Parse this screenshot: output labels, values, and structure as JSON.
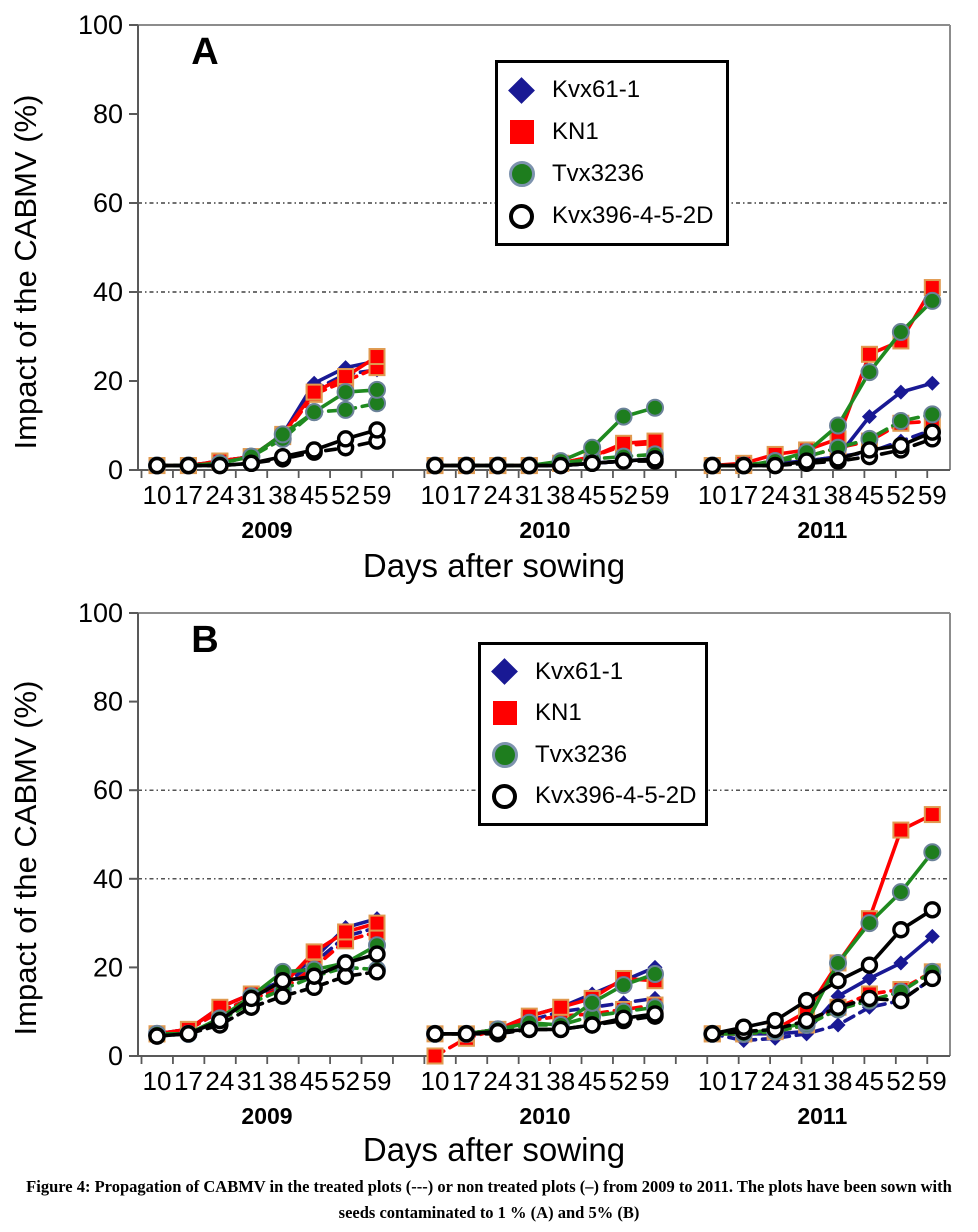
{
  "figure_caption": {
    "line1": "Figure 4: Propagation of CABMV in the treated plots (---) or non treated plots (–)   from 2009 to 2011. The plots have been sown with",
    "line2": "seeds contaminated to 1 % (A) and 5% (B)"
  },
  "colors": {
    "navy": "#191994",
    "red": "#ff0000",
    "red_border": "#e09a50",
    "green": "#1f8a1f",
    "green_border": "#6b8299",
    "black": "#000000",
    "axis_dark": "#595959",
    "axis_light": "#8c8c8c"
  },
  "legend": {
    "entries": [
      {
        "label": "Kvx61-1",
        "marker": "diamond",
        "color": "#191994",
        "border": "#191994"
      },
      {
        "label": "KN1",
        "marker": "square",
        "color": "#ff0000",
        "border": "#ff0000"
      },
      {
        "label": "Tvx3236",
        "marker": "circle",
        "color": "#1e7d1e",
        "border": "#7d93ae"
      },
      {
        "label": "Kvx396-4-5-2D",
        "marker": "open-circle",
        "color": "#ffffff",
        "border": "#000000"
      }
    ]
  },
  "chart_data": [
    {
      "type": "line",
      "panel_label": "A",
      "ylabel": "Impact of the CABMV (%)",
      "xlabel": "Days after sowing",
      "ylim": [
        0,
        100
      ],
      "yticks": [
        0,
        20,
        40,
        60,
        80,
        100
      ],
      "gridlines_y": [
        40,
        60
      ],
      "x_tick_labels": [
        "10",
        "17",
        "24",
        "31",
        "38",
        "45",
        "52",
        "59"
      ],
      "year_groups": [
        "2009",
        "2010",
        "2011"
      ],
      "legend_position": "top-center",
      "series": [
        {
          "name": "Kvx61-1",
          "treatment": "treated",
          "line": "dashed",
          "color": "#191994",
          "marker": "diamond",
          "values_by_year": [
            [
              1,
              1,
              2,
              3,
              8,
              18,
              21.5,
              22.5
            ],
            [
              1,
              1,
              1,
              1,
              1,
              1.5,
              2,
              2.5
            ],
            [
              1,
              1,
              1.5,
              2,
              3,
              4,
              6.5,
              9
            ]
          ]
        },
        {
          "name": "Kvx61-1",
          "treatment": "non-treated",
          "line": "solid",
          "color": "#191994",
          "marker": "diamond",
          "values_by_year": [
            [
              1,
              1,
              2,
              3,
              8,
              19.5,
              23,
              24.5
            ],
            [
              1,
              1,
              1,
              1,
              1,
              1.5,
              2,
              2.5
            ],
            [
              1,
              1,
              1.5,
              2,
              3,
              12,
              17.5,
              19.5
            ]
          ]
        },
        {
          "name": "KN1",
          "treatment": "treated",
          "line": "dashed",
          "color": "#ff0000",
          "marker": "square",
          "values_by_year": [
            [
              1,
              1,
              2,
              3,
              7.5,
              17,
              20,
              23
            ],
            [
              1,
              1,
              1,
              1,
              1.5,
              3,
              5.5,
              6
            ],
            [
              1,
              1,
              2,
              3,
              5,
              6.5,
              10.5,
              11
            ]
          ]
        },
        {
          "name": "KN1",
          "treatment": "non-treated",
          "line": "solid",
          "color": "#ff0000",
          "marker": "square",
          "values_by_year": [
            [
              1,
              1,
              2,
              3,
              8,
              17.5,
              21,
              25.5
            ],
            [
              1,
              1,
              1,
              1,
              1.5,
              3,
              6,
              6.5
            ],
            [
              1,
              1.5,
              3.5,
              4.5,
              7,
              26,
              29,
              41
            ]
          ]
        },
        {
          "name": "Tvx3236",
          "treatment": "treated",
          "line": "dashed",
          "color": "#1f8a1f",
          "marker": "circle",
          "values_by_year": [
            [
              1,
              1,
              1.5,
              3,
              7,
              13,
              13.5,
              15
            ],
            [
              1,
              1,
              1,
              1,
              1.5,
              2.5,
              3,
              3.5
            ],
            [
              1,
              1,
              2,
              3,
              5,
              7,
              11,
              12.5
            ]
          ]
        },
        {
          "name": "Tvx3236",
          "treatment": "non-treated",
          "line": "solid",
          "color": "#1f8a1f",
          "marker": "circle",
          "values_by_year": [
            [
              1,
              1,
              1.5,
              3,
              8,
              13,
              17.5,
              18
            ],
            [
              1,
              1,
              1,
              1,
              2,
              5,
              12,
              14
            ],
            [
              1,
              1,
              2,
              4,
              10,
              22,
              31,
              38
            ]
          ]
        },
        {
          "name": "Kvx396-4-5-2D",
          "treatment": "treated",
          "line": "dashed",
          "color": "#000000",
          "marker": "open-circle",
          "values_by_year": [
            [
              1,
              1,
              1,
              1.5,
              2.5,
              4,
              5,
              6.5
            ],
            [
              1,
              1,
              1,
              1,
              1,
              1.5,
              2,
              2
            ],
            [
              1,
              1,
              1,
              1.5,
              2,
              3,
              4.5,
              7
            ]
          ]
        },
        {
          "name": "Kvx396-4-5-2D",
          "treatment": "non-treated",
          "line": "solid",
          "color": "#000000",
          "marker": "open-circle",
          "values_by_year": [
            [
              1,
              1,
              1,
              1.5,
              3,
              4.5,
              7,
              9
            ],
            [
              1,
              1,
              1,
              1,
              1,
              1.5,
              2,
              2.5
            ],
            [
              1,
              1,
              1,
              2,
              2.5,
              4.5,
              5.5,
              8.5
            ]
          ]
        }
      ]
    },
    {
      "type": "line",
      "panel_label": "B",
      "ylabel": "Impact of the CABMV (%)",
      "xlabel": "Days after sowing",
      "ylim": [
        0,
        100
      ],
      "yticks": [
        0,
        20,
        40,
        60,
        80,
        100
      ],
      "gridlines_y": [
        40,
        60
      ],
      "x_tick_labels": [
        "10",
        "17",
        "24",
        "31",
        "38",
        "45",
        "52",
        "59"
      ],
      "year_groups": [
        "2009",
        "2010",
        "2011"
      ],
      "legend_position": "top-center",
      "series": [
        {
          "name": "Kvx61-1",
          "treatment": "treated",
          "line": "dashed",
          "color": "#191994",
          "marker": "diamond",
          "values_by_year": [
            [
              5,
              6,
              10,
              13,
              16,
              21,
              27,
              29
            ],
            [
              5,
              5,
              6,
              8,
              10,
              11,
              12,
              13
            ],
            [
              5,
              3.5,
              4,
              5,
              7,
              11,
              12.5,
              17.5
            ]
          ]
        },
        {
          "name": "Kvx61-1",
          "treatment": "non-treated",
          "line": "solid",
          "color": "#191994",
          "marker": "diamond",
          "values_by_year": [
            [
              5,
              6,
              11,
              14,
              17,
              22,
              29,
              31
            ],
            [
              5,
              5,
              6,
              9,
              11,
              14,
              17,
              20
            ],
            [
              5,
              5,
              5,
              5.5,
              13.5,
              17.5,
              21,
              27
            ]
          ]
        },
        {
          "name": "KN1",
          "treatment": "treated",
          "line": "dashed",
          "color": "#ff0000",
          "marker": "square",
          "values_by_year": [
            [
              5,
              6,
              10,
              13,
              15,
              20,
              26,
              28
            ],
            [
              0,
              4,
              6,
              8,
              9,
              9.5,
              10.5,
              11.5
            ],
            [
              5,
              5,
              5.5,
              7,
              11,
              14,
              15,
              19
            ]
          ]
        },
        {
          "name": "KN1",
          "treatment": "non-treated",
          "line": "solid",
          "color": "#ff0000",
          "marker": "square",
          "values_by_year": [
            [
              5,
              6,
              11,
              14,
              16,
              23.5,
              28,
              30
            ],
            [
              5,
              5,
              6,
              9,
              11,
              13,
              17.5,
              17
            ],
            [
              5,
              5,
              6,
              10,
              21,
              31,
              51,
              54.5
            ]
          ]
        },
        {
          "name": "Tvx3236",
          "treatment": "treated",
          "line": "dashed",
          "color": "#1f8a1f",
          "marker": "circle",
          "values_by_year": [
            [
              5,
              5,
              8,
              12,
              15,
              18,
              20,
              19.5
            ],
            [
              5,
              5,
              6,
              7,
              7,
              9,
              10,
              11
            ],
            [
              5,
              5,
              5.5,
              7,
              10.5,
              12.5,
              14.5,
              19
            ]
          ]
        },
        {
          "name": "Tvx3236",
          "treatment": "non-treated",
          "line": "solid",
          "color": "#1f8a1f",
          "marker": "circle",
          "values_by_year": [
            [
              5,
              5,
              8.5,
              13.5,
              19,
              19.5,
              21,
              25
            ],
            [
              5,
              5,
              6,
              7.5,
              7,
              12,
              16,
              18.5
            ],
            [
              5,
              5,
              6,
              7.5,
              21,
              30,
              37,
              46
            ]
          ]
        },
        {
          "name": "Kvx396-4-5-2D",
          "treatment": "treated",
          "line": "dashed",
          "color": "#000000",
          "marker": "open-circle",
          "values_by_year": [
            [
              4.5,
              5,
              7,
              11,
              13.5,
              15.5,
              18,
              19
            ],
            [
              5,
              5,
              5,
              6,
              6,
              7,
              8,
              9
            ],
            [
              5,
              5.5,
              6,
              8,
              11,
              13,
              12.5,
              17.5
            ]
          ]
        },
        {
          "name": "Kvx396-4-5-2D",
          "treatment": "non-treated",
          "line": "solid",
          "color": "#000000",
          "marker": "open-circle",
          "values_by_year": [
            [
              4.5,
              5,
              8,
              13,
              17,
              18,
              21,
              23
            ],
            [
              5,
              5,
              5.5,
              6,
              6,
              7,
              8.5,
              9.5
            ],
            [
              5,
              6.5,
              8,
              12.5,
              17,
              20.5,
              28.5,
              33
            ]
          ]
        }
      ]
    }
  ]
}
